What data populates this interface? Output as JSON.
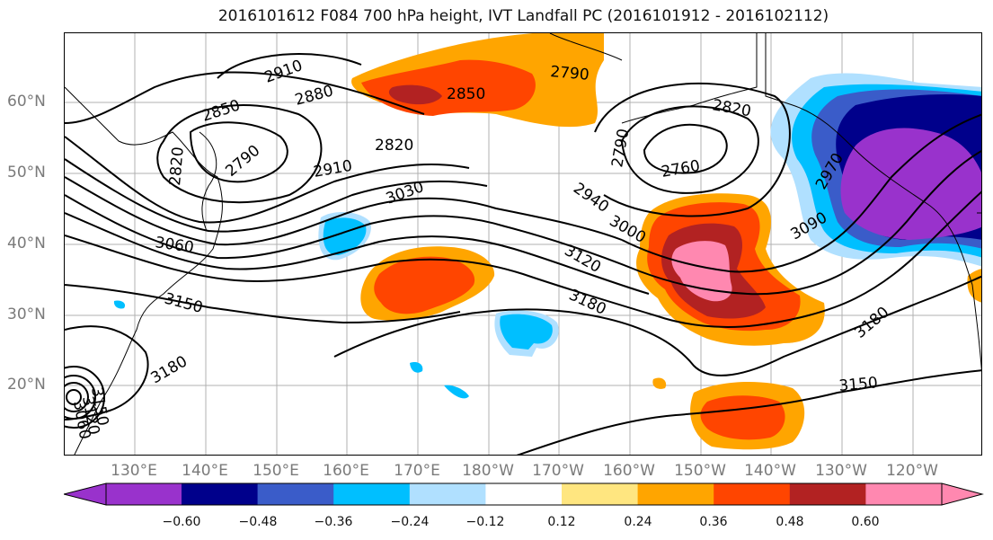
{
  "title": "2016101612 F084 700 hPa height, IVT Landfall PC (2016101912 - 2016102112)",
  "lat_labels": [
    "60°N",
    "50°N",
    "40°N",
    "30°N",
    "20°N"
  ],
  "lon_labels": [
    "130°E",
    "140°E",
    "150°E",
    "160°E",
    "170°E",
    "180°W",
    "170°W",
    "160°W",
    "150°W",
    "140°W",
    "130°W",
    "120°W"
  ],
  "contour_labels": [
    "2910",
    "2880",
    "2850",
    "2820",
    "2790",
    "2790",
    "2820",
    "2850",
    "2820",
    "2910",
    "3030",
    "3060",
    "3150",
    "3180",
    "3150",
    "3120",
    "3060",
    "2790",
    "2760",
    "2940",
    "3000",
    "3120",
    "3180",
    "3090",
    "2970",
    "3180",
    "3150"
  ],
  "colorbar": {
    "ticks": [
      "−0.60",
      "−0.48",
      "−0.36",
      "−0.24",
      "−0.12",
      "0.12",
      "0.24",
      "0.36",
      "0.48",
      "0.60"
    ],
    "colors": [
      "#9932cc",
      "#00008b",
      "#3a5cc9",
      "#00bfff",
      "#b0e0ff",
      "#ffffff",
      "#ffe680",
      "#ffa500",
      "#ff4500",
      "#b22222",
      "#ff88b0",
      "#ff88b0"
    ]
  },
  "colors": {
    "grid": "#b0b0b0",
    "contour": "#000000",
    "coast": "#000000"
  }
}
